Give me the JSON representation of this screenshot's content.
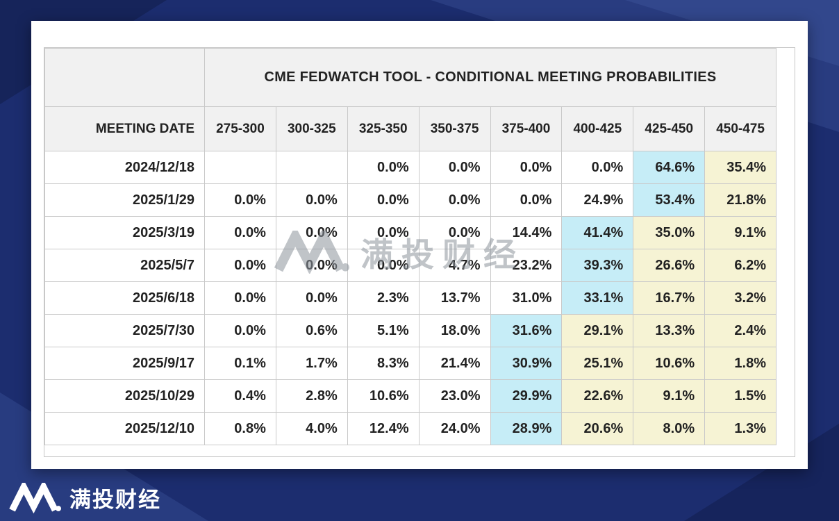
{
  "colors": {
    "background": "#1c2d6f",
    "background_dark": "#16245a",
    "background_light": "#2c4084",
    "background_lighter": "#3a5096",
    "card": "#ffffff",
    "header_bg": "#f1f1f1",
    "grid_line": "#c9c9c9",
    "text": "#222222",
    "highlight_cyan": "#c6edf7",
    "highlight_yellow": "#f6f3d4",
    "watermark": "#8d949c",
    "brand_text": "#ffffff"
  },
  "table": {
    "title": "CME FEDWATCH TOOL - CONDITIONAL MEETING PROBABILITIES",
    "date_header": "MEETING DATE",
    "range_headers": [
      "275-300",
      "300-325",
      "325-350",
      "350-375",
      "375-400",
      "400-425",
      "425-450",
      "450-475"
    ],
    "rows": [
      {
        "date": "2024/12/18",
        "cells": [
          {
            "v": "",
            "h": "none"
          },
          {
            "v": "",
            "h": "none"
          },
          {
            "v": "0.0%",
            "h": "none"
          },
          {
            "v": "0.0%",
            "h": "none"
          },
          {
            "v": "0.0%",
            "h": "none"
          },
          {
            "v": "0.0%",
            "h": "none"
          },
          {
            "v": "64.6%",
            "h": "cyan"
          },
          {
            "v": "35.4%",
            "h": "yellow"
          }
        ]
      },
      {
        "date": "2025/1/29",
        "cells": [
          {
            "v": "0.0%",
            "h": "none"
          },
          {
            "v": "0.0%",
            "h": "none"
          },
          {
            "v": "0.0%",
            "h": "none"
          },
          {
            "v": "0.0%",
            "h": "none"
          },
          {
            "v": "0.0%",
            "h": "none"
          },
          {
            "v": "24.9%",
            "h": "none"
          },
          {
            "v": "53.4%",
            "h": "cyan"
          },
          {
            "v": "21.8%",
            "h": "yellow"
          }
        ]
      },
      {
        "date": "2025/3/19",
        "cells": [
          {
            "v": "0.0%",
            "h": "none"
          },
          {
            "v": "0.0%",
            "h": "none"
          },
          {
            "v": "0.0%",
            "h": "none"
          },
          {
            "v": "0.0%",
            "h": "none"
          },
          {
            "v": "14.4%",
            "h": "none"
          },
          {
            "v": "41.4%",
            "h": "cyan"
          },
          {
            "v": "35.0%",
            "h": "yellow"
          },
          {
            "v": "9.1%",
            "h": "yellow"
          }
        ]
      },
      {
        "date": "2025/5/7",
        "cells": [
          {
            "v": "0.0%",
            "h": "none"
          },
          {
            "v": "0.0%",
            "h": "none"
          },
          {
            "v": "0.0%",
            "h": "none"
          },
          {
            "v": "4.7%",
            "h": "none"
          },
          {
            "v": "23.2%",
            "h": "none"
          },
          {
            "v": "39.3%",
            "h": "cyan"
          },
          {
            "v": "26.6%",
            "h": "yellow"
          },
          {
            "v": "6.2%",
            "h": "yellow"
          }
        ]
      },
      {
        "date": "2025/6/18",
        "cells": [
          {
            "v": "0.0%",
            "h": "none"
          },
          {
            "v": "0.0%",
            "h": "none"
          },
          {
            "v": "2.3%",
            "h": "none"
          },
          {
            "v": "13.7%",
            "h": "none"
          },
          {
            "v": "31.0%",
            "h": "none"
          },
          {
            "v": "33.1%",
            "h": "cyan"
          },
          {
            "v": "16.7%",
            "h": "yellow"
          },
          {
            "v": "3.2%",
            "h": "yellow"
          }
        ]
      },
      {
        "date": "2025/7/30",
        "cells": [
          {
            "v": "0.0%",
            "h": "none"
          },
          {
            "v": "0.6%",
            "h": "none"
          },
          {
            "v": "5.1%",
            "h": "none"
          },
          {
            "v": "18.0%",
            "h": "none"
          },
          {
            "v": "31.6%",
            "h": "cyan"
          },
          {
            "v": "29.1%",
            "h": "yellow"
          },
          {
            "v": "13.3%",
            "h": "yellow"
          },
          {
            "v": "2.4%",
            "h": "yellow"
          }
        ]
      },
      {
        "date": "2025/9/17",
        "cells": [
          {
            "v": "0.1%",
            "h": "none"
          },
          {
            "v": "1.7%",
            "h": "none"
          },
          {
            "v": "8.3%",
            "h": "none"
          },
          {
            "v": "21.4%",
            "h": "none"
          },
          {
            "v": "30.9%",
            "h": "cyan"
          },
          {
            "v": "25.1%",
            "h": "yellow"
          },
          {
            "v": "10.6%",
            "h": "yellow"
          },
          {
            "v": "1.8%",
            "h": "yellow"
          }
        ]
      },
      {
        "date": "2025/10/29",
        "cells": [
          {
            "v": "0.4%",
            "h": "none"
          },
          {
            "v": "2.8%",
            "h": "none"
          },
          {
            "v": "10.6%",
            "h": "none"
          },
          {
            "v": "23.0%",
            "h": "none"
          },
          {
            "v": "29.9%",
            "h": "cyan"
          },
          {
            "v": "22.6%",
            "h": "yellow"
          },
          {
            "v": "9.1%",
            "h": "yellow"
          },
          {
            "v": "1.5%",
            "h": "yellow"
          }
        ]
      },
      {
        "date": "2025/12/10",
        "cells": [
          {
            "v": "0.8%",
            "h": "none"
          },
          {
            "v": "4.0%",
            "h": "none"
          },
          {
            "v": "12.4%",
            "h": "none"
          },
          {
            "v": "24.0%",
            "h": "none"
          },
          {
            "v": "28.9%",
            "h": "cyan"
          },
          {
            "v": "20.6%",
            "h": "yellow"
          },
          {
            "v": "8.0%",
            "h": "yellow"
          },
          {
            "v": "1.3%",
            "h": "yellow"
          }
        ]
      }
    ]
  },
  "watermark": {
    "brand": "满投财经"
  },
  "footer": {
    "brand": "满投财经"
  },
  "chart_data": {
    "type": "table",
    "title": "CME FEDWATCH TOOL - CONDITIONAL MEETING PROBABILITIES",
    "columns": [
      "MEETING DATE",
      "275-300",
      "300-325",
      "325-350",
      "350-375",
      "375-400",
      "400-425",
      "425-450",
      "450-475"
    ],
    "units": "percent probability of fed funds target range (bps)",
    "rows": [
      [
        "2024/12/18",
        null,
        null,
        0.0,
        0.0,
        0.0,
        0.0,
        64.6,
        35.4
      ],
      [
        "2025/1/29",
        0.0,
        0.0,
        0.0,
        0.0,
        0.0,
        24.9,
        53.4,
        21.8
      ],
      [
        "2025/3/19",
        0.0,
        0.0,
        0.0,
        0.0,
        14.4,
        41.4,
        35.0,
        9.1
      ],
      [
        "2025/5/7",
        0.0,
        0.0,
        0.0,
        4.7,
        23.2,
        39.3,
        26.6,
        6.2
      ],
      [
        "2025/6/18",
        0.0,
        0.0,
        2.3,
        13.7,
        31.0,
        33.1,
        16.7,
        3.2
      ],
      [
        "2025/7/30",
        0.0,
        0.6,
        5.1,
        18.0,
        31.6,
        29.1,
        13.3,
        2.4
      ],
      [
        "2025/9/17",
        0.1,
        1.7,
        8.3,
        21.4,
        30.9,
        25.1,
        10.6,
        1.8
      ],
      [
        "2025/10/29",
        0.4,
        2.8,
        10.6,
        23.0,
        29.9,
        22.6,
        9.1,
        1.5
      ],
      [
        "2025/12/10",
        0.8,
        4.0,
        12.4,
        24.0,
        28.9,
        20.6,
        8.0,
        1.3
      ]
    ],
    "highlights": {
      "cyan_cells_max_probability": [
        [
          "2024/12/18",
          "425-450"
        ],
        [
          "2025/1/29",
          "425-450"
        ],
        [
          "2025/3/19",
          "400-425"
        ],
        [
          "2025/5/7",
          "400-425"
        ],
        [
          "2025/6/18",
          "400-425"
        ],
        [
          "2025/7/30",
          "375-400"
        ],
        [
          "2025/9/17",
          "375-400"
        ],
        [
          "2025/10/29",
          "375-400"
        ],
        [
          "2025/12/10",
          "375-400"
        ]
      ],
      "yellow_rule": "cells to the right of the cyan max-probability cell"
    }
  }
}
